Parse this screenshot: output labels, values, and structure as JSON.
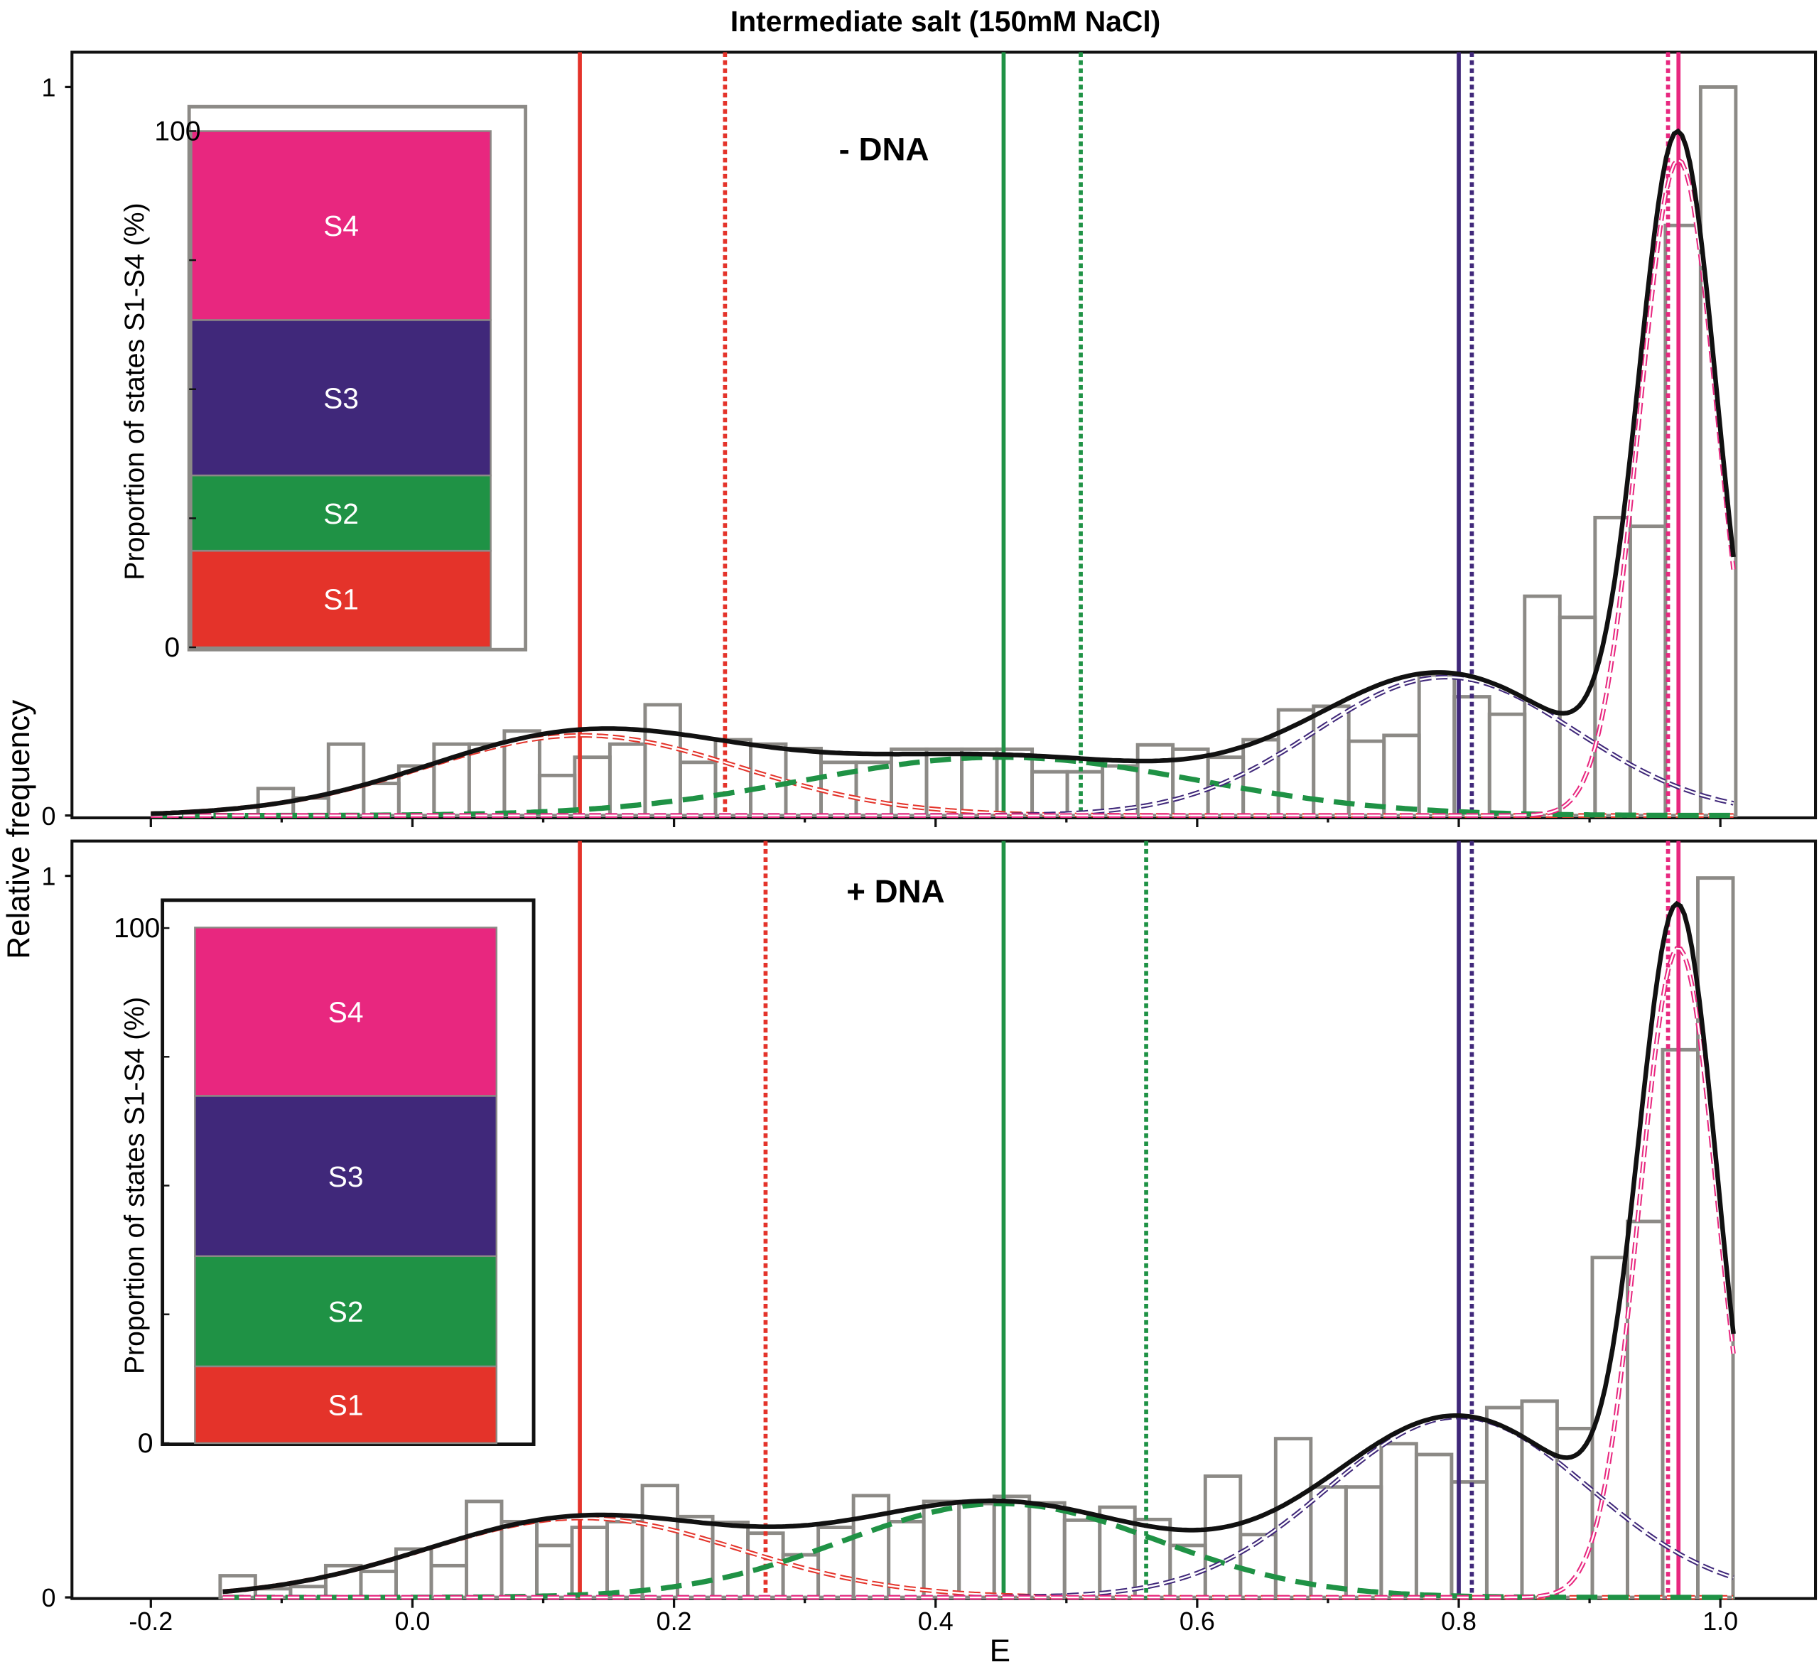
{
  "title": "Intermediate salt (150mM NaCl)",
  "ylabel": "Relative frequency",
  "xlabel": "E",
  "xticks": [
    "-0.2",
    "0.0",
    "0.2",
    "0.4",
    "0.6",
    "0.8",
    "1.0"
  ],
  "colors": {
    "S1": "#e4332a",
    "S2": "#1f9245",
    "S3": "#40287a",
    "S4": "#e8277f",
    "fit": "#111111",
    "bars": "#8c8a86"
  },
  "chart_data": [
    {
      "type": "bar",
      "panel_label": "- DNA",
      "xlim": [
        -0.26,
        1.07
      ],
      "ylim": [
        0,
        1
      ],
      "yticks": [
        "0",
        "1"
      ],
      "bin_start": -0.118,
      "bin_width": 0.0269,
      "values": [
        0.037,
        0.024,
        0.098,
        0.044,
        0.068,
        0.098,
        0.098,
        0.116,
        0.055,
        0.08,
        0.098,
        0.152,
        0.073,
        0.104,
        0.098,
        0.092,
        0.073,
        0.073,
        0.091,
        0.091,
        0.091,
        0.091,
        0.06,
        0.06,
        0.068,
        0.097,
        0.091,
        0.08,
        0.104,
        0.145,
        0.15,
        0.102,
        0.11,
        0.193,
        0.163,
        0.139,
        0.301,
        0.272,
        0.409,
        0.397,
        0.81,
        1.0
      ],
      "fit_range": [
        -0.2,
        1.01
      ],
      "components": [
        {
          "state": "S1",
          "mu": 0.13,
          "sigma": 0.12,
          "amplitude": 0.11
        },
        {
          "state": "S2",
          "mu": 0.45,
          "sigma": 0.15,
          "amplitude": 0.08
        },
        {
          "state": "S3",
          "mu": 0.79,
          "sigma": 0.1,
          "amplitude": 0.19
        },
        {
          "state": "S4",
          "mu": 0.968,
          "sigma": 0.03,
          "amplitude": 0.9
        }
      ],
      "vlines": [
        {
          "state": "S1",
          "E": 0.128,
          "style": "solid"
        },
        {
          "state": "S1",
          "E": 0.239,
          "style": "dotted"
        },
        {
          "state": "S2",
          "E": 0.452,
          "style": "solid"
        },
        {
          "state": "S2",
          "E": 0.511,
          "style": "dotted"
        },
        {
          "state": "S3",
          "E": 0.8,
          "style": "solid"
        },
        {
          "state": "S3",
          "E": 0.81,
          "style": "dotted"
        },
        {
          "state": "S4",
          "E": 0.968,
          "style": "solid"
        },
        {
          "state": "S4",
          "E": 0.96,
          "style": "dotted"
        }
      ],
      "inset": {
        "type": "stacked-bar",
        "ylabel": "Proportion of states S1-S4 (%)",
        "yticks": [
          "0",
          "100"
        ],
        "segments": [
          {
            "label": "S1",
            "percent": 18.7
          },
          {
            "label": "S2",
            "percent": 14.6
          },
          {
            "label": "S3",
            "percent": 30.1
          },
          {
            "label": "S4",
            "percent": 36.6
          }
        ]
      }
    },
    {
      "type": "bar",
      "panel_label": "+ DNA",
      "xlim": [
        -0.26,
        1.07
      ],
      "ylim": [
        0,
        1
      ],
      "yticks": [
        "0",
        "1"
      ],
      "bin_start": -0.147,
      "bin_width": 0.0269,
      "values": [
        0.03,
        0.012,
        0.015,
        0.044,
        0.036,
        0.067,
        0.044,
        0.133,
        0.105,
        0.072,
        0.097,
        0.105,
        0.155,
        0.112,
        0.104,
        0.089,
        0.059,
        0.097,
        0.141,
        0.105,
        0.133,
        0.13,
        0.14,
        0.131,
        0.107,
        0.125,
        0.108,
        0.072,
        0.168,
        0.087,
        0.22,
        0.153,
        0.153,
        0.213,
        0.198,
        0.16,
        0.263,
        0.272,
        0.234,
        0.471,
        0.521,
        0.759,
        0.997
      ],
      "fit_range": [
        -0.145,
        1.01
      ],
      "components": [
        {
          "state": "S1",
          "mu": 0.13,
          "sigma": 0.12,
          "amplitude": 0.11
        },
        {
          "state": "S2",
          "mu": 0.45,
          "sigma": 0.12,
          "amplitude": 0.13
        },
        {
          "state": "S3",
          "mu": 0.8,
          "sigma": 0.1,
          "amplitude": 0.25
        },
        {
          "state": "S4",
          "mu": 0.968,
          "sigma": 0.03,
          "amplitude": 0.9
        }
      ],
      "vlines": [
        {
          "state": "S1",
          "E": 0.128,
          "style": "solid"
        },
        {
          "state": "S1",
          "E": 0.27,
          "style": "dotted"
        },
        {
          "state": "S2",
          "E": 0.452,
          "style": "solid"
        },
        {
          "state": "S2",
          "E": 0.561,
          "style": "dotted"
        },
        {
          "state": "S3",
          "E": 0.8,
          "style": "solid"
        },
        {
          "state": "S3",
          "E": 0.81,
          "style": "dotted"
        },
        {
          "state": "S4",
          "E": 0.968,
          "style": "solid"
        },
        {
          "state": "S4",
          "E": 0.96,
          "style": "dotted"
        }
      ],
      "inset": {
        "type": "stacked-bar",
        "ylabel": "Proportion of states S1-S4 (%)",
        "yticks": [
          "0",
          "100"
        ],
        "segments": [
          {
            "label": "S1",
            "percent": 14.9
          },
          {
            "label": "S2",
            "percent": 21.4
          },
          {
            "label": "S3",
            "percent": 31.1
          },
          {
            "label": "S4",
            "percent": 32.7
          }
        ]
      }
    }
  ]
}
